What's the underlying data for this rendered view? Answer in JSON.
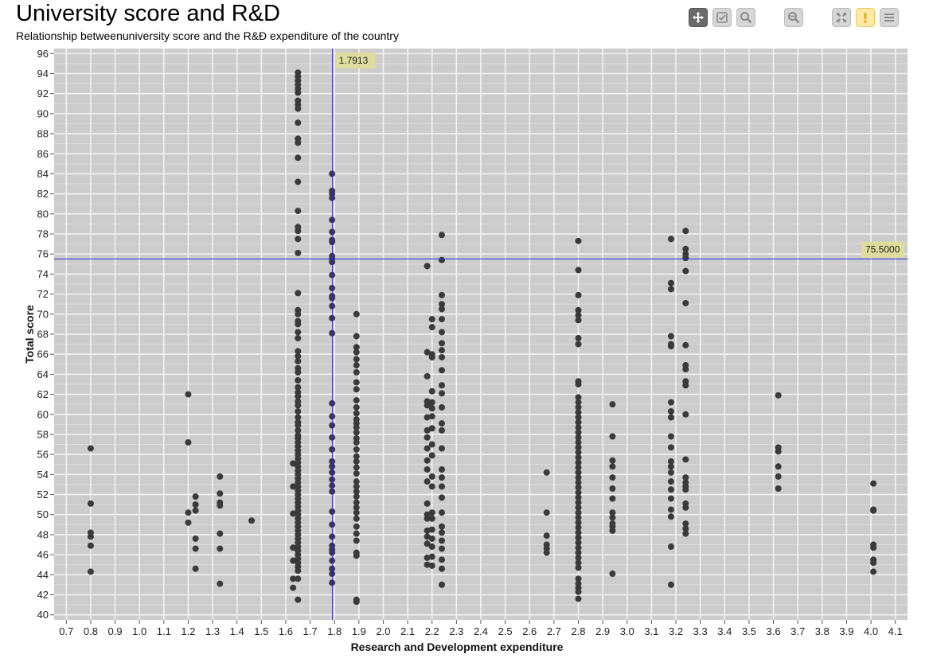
{
  "toolbar": {
    "buttons": [
      {
        "name": "pan-button",
        "icon": "move-icon",
        "active": true
      },
      {
        "name": "select-button",
        "icon": "checkbox-icon",
        "active": false
      },
      {
        "name": "zoom-button",
        "icon": "magnifier-icon",
        "active": false
      },
      {
        "name": "zoom-out-button",
        "icon": "zoom-out-icon",
        "active": false
      },
      {
        "name": "fullscreen-button",
        "icon": "expand-icon",
        "active": false
      },
      {
        "name": "alert-button",
        "icon": "exclamation-icon",
        "active": false
      },
      {
        "name": "menu-button",
        "icon": "menu-icon",
        "active": false
      }
    ]
  },
  "chart_data": {
    "type": "scatter",
    "title": "University score and R&D",
    "subtitle": "Relationship betweenuniversity score and the R&Đ expenditure of the country",
    "xlabel": "Research and Development expenditure",
    "ylabel": "Total score",
    "xlim": [
      0.65,
      4.15
    ],
    "ylim": [
      39.5,
      96.5
    ],
    "xticks": [
      "0.7",
      "0.8",
      "0.9",
      "1.0",
      "1.1",
      "1.2",
      "1.3",
      "1.4",
      "1.5",
      "1.6",
      "1.7",
      "1.8",
      "1.9",
      "2.0",
      "2.1",
      "2.2",
      "2.3",
      "2.4",
      "2.5",
      "2.6",
      "2.7",
      "2.8",
      "2.9",
      "3.0",
      "3.1",
      "3.2",
      "3.3",
      "3.4",
      "3.5",
      "3.6",
      "3.7",
      "3.8",
      "3.9",
      "4.0",
      "4.1"
    ],
    "yticks": [
      "40",
      "42",
      "44",
      "46",
      "48",
      "50",
      "52",
      "54",
      "56",
      "58",
      "60",
      "62",
      "64",
      "66",
      "68",
      "70",
      "72",
      "74",
      "76",
      "78",
      "80",
      "82",
      "84",
      "86",
      "88",
      "90",
      "92",
      "94",
      "96"
    ],
    "grid": true,
    "point_color": "#3a3a3a",
    "crosshair": {
      "x": 1.7913,
      "y": 75.5,
      "x_label": "1.7913",
      "y_label": "75.5000",
      "color": "#2a2ad0"
    },
    "columns": [
      {
        "x": 0.8,
        "y": [
          56.6,
          51.1,
          48.2,
          47.8,
          46.9,
          44.3
        ]
      },
      {
        "x": 1.2,
        "y": [
          62.0,
          57.2,
          50.2,
          49.2
        ]
      },
      {
        "x": 1.23,
        "y": [
          51.8,
          51.0,
          50.4,
          47.6,
          46.6,
          44.6
        ]
      },
      {
        "x": 1.33,
        "y": [
          53.8,
          52.1,
          51.2,
          50.9,
          48.1,
          46.6,
          43.1
        ]
      },
      {
        "x": 1.46,
        "y": [
          49.4
        ]
      },
      {
        "x": 1.63,
        "y": [
          55.1,
          52.8,
          50.1,
          46.7,
          45.4,
          43.6,
          42.7
        ]
      },
      {
        "x": 1.65,
        "y": [
          94.1,
          93.7,
          93.3,
          92.9,
          92.5,
          92.1,
          91.3,
          90.9,
          90.5,
          89.1,
          87.5,
          87.1,
          85.6,
          83.2,
          80.3,
          78.7,
          78.3,
          77.5,
          76.1,
          72.1,
          70.4,
          70.0,
          69.3,
          69.0,
          68.2,
          67.6,
          66.3,
          65.8,
          65.3,
          64.6,
          64.2,
          63.4,
          62.7,
          62.2,
          61.8,
          61.3,
          60.9,
          60.3,
          59.7,
          59.2,
          58.9,
          58.4,
          57.9,
          57.6,
          57.2,
          56.8,
          56.4,
          56.0,
          55.6,
          55.2,
          54.8,
          54.4,
          54.0,
          53.6,
          53.2,
          52.8,
          52.4,
          52.0,
          51.6,
          51.2,
          50.8,
          50.4,
          50.0,
          49.6,
          49.2,
          48.8,
          48.4,
          48.0,
          47.6,
          47.2,
          46.8,
          46.4,
          46.0,
          45.6,
          45.2,
          44.8,
          44.4,
          43.6,
          41.5
        ]
      },
      {
        "x": 1.79,
        "y": [
          84.0,
          82.3,
          82.0,
          81.6,
          79.4,
          78.2,
          77.4,
          77.2,
          75.8,
          75.5,
          75.2,
          73.9,
          72.6,
          71.8,
          71.6,
          70.8,
          69.6,
          68.1,
          61.1,
          59.8,
          58.9,
          57.7,
          56.5,
          55.3,
          54.8,
          54.2,
          53.5,
          52.9,
          52.3,
          50.3,
          49.0,
          47.8,
          46.9,
          46.5,
          46.2,
          45.4,
          44.6,
          44.1,
          43.2
        ]
      },
      {
        "x": 1.89,
        "y": [
          70.0,
          67.8,
          66.7,
          66.2,
          65.5,
          64.9,
          64.2,
          63.2,
          62.5,
          61.4,
          60.7,
          60.1,
          59.5,
          59.1,
          58.7,
          58.2,
          57.6,
          57.2,
          56.5,
          55.8,
          55.3,
          54.7,
          54.1,
          53.3,
          52.8,
          52.3,
          51.8,
          51.2,
          50.7,
          50.2,
          49.6,
          48.8,
          48.1,
          47.4,
          46.2,
          45.9,
          41.5,
          41.3
        ]
      },
      {
        "x": 2.18,
        "y": [
          74.8,
          66.2,
          63.8,
          61.3,
          60.9,
          59.7,
          58.4,
          57.7,
          56.6,
          55.4,
          54.5,
          53.3,
          51.1,
          50.0,
          49.6,
          48.4,
          47.8,
          47.1,
          45.7,
          45.0
        ]
      },
      {
        "x": 2.2,
        "y": [
          69.5,
          68.7,
          66.0,
          65.7,
          62.3,
          61.2,
          60.6,
          59.8,
          58.6,
          57.0,
          55.9,
          53.8,
          52.8,
          50.2,
          49.6,
          48.5,
          47.6,
          46.8,
          45.8,
          44.9
        ]
      },
      {
        "x": 2.24,
        "y": [
          77.9,
          75.4,
          71.9,
          71.0,
          70.5,
          69.5,
          68.2,
          67.1,
          66.4,
          65.7,
          64.4,
          62.9,
          62.1,
          60.7,
          59.1,
          58.4,
          56.6,
          54.5,
          53.7,
          52.8,
          51.7,
          50.2,
          48.8,
          48.2,
          47.4,
          46.6,
          45.5,
          44.6,
          43.0
        ]
      },
      {
        "x": 2.67,
        "y": [
          54.2,
          50.2,
          47.9,
          47.0,
          46.6,
          46.2
        ]
      },
      {
        "x": 2.8,
        "y": [
          77.3,
          74.4,
          71.9,
          70.4,
          69.9,
          69.4,
          67.6,
          67.0,
          63.3,
          63.0,
          61.7,
          61.2,
          60.7,
          60.2,
          59.7,
          59.2,
          58.7,
          58.2,
          57.7,
          57.2,
          56.7,
          56.2,
          55.7,
          55.2,
          54.7,
          54.2,
          53.7,
          53.2,
          52.7,
          52.2,
          51.7,
          51.2,
          50.7,
          50.2,
          49.7,
          49.2,
          48.7,
          48.2,
          47.7,
          47.2,
          46.7,
          46.2,
          45.7,
          45.2,
          44.7,
          43.6,
          43.1,
          42.7,
          42.3,
          41.6
        ]
      },
      {
        "x": 2.94,
        "y": [
          61.0,
          57.8,
          55.4,
          54.8,
          53.7,
          52.6,
          51.6,
          50.2,
          49.7,
          49.1,
          48.8,
          48.4,
          44.1
        ]
      },
      {
        "x": 3.18,
        "y": [
          77.5,
          73.1,
          72.5,
          67.8,
          67.0,
          66.8,
          61.2,
          60.3,
          59.7,
          57.8,
          56.7,
          55.3,
          54.8,
          54.2,
          53.3,
          52.5,
          51.6,
          50.5,
          49.8,
          46.8,
          43.0
        ]
      },
      {
        "x": 3.24,
        "y": [
          78.3,
          76.5,
          76.0,
          75.6,
          74.3,
          71.1,
          66.9,
          64.9,
          64.5,
          63.3,
          62.9,
          60.0,
          55.5,
          53.7,
          53.2,
          52.8,
          52.5,
          51.1,
          50.7,
          49.1,
          48.6,
          48.1
        ]
      },
      {
        "x": 3.62,
        "y": [
          61.9,
          56.7,
          56.3,
          54.8,
          53.8,
          52.6
        ]
      },
      {
        "x": 4.01,
        "y": [
          53.1,
          50.5,
          50.4,
          47.0,
          46.7,
          45.5,
          45.2,
          44.3
        ]
      }
    ]
  }
}
